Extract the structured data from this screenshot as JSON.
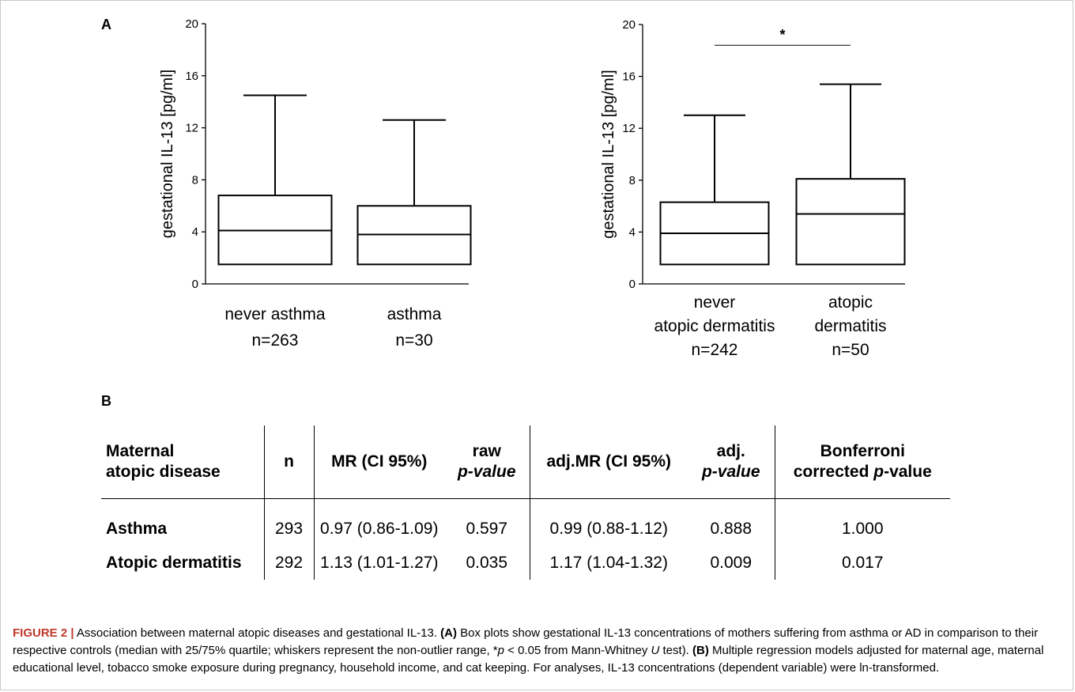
{
  "panel_a_label": "A",
  "panel_b_label": "B",
  "chart_data": [
    {
      "type": "box",
      "ylabel": "gestational IL-13 [pg/ml]",
      "ylim": [
        0,
        20
      ],
      "yticks": [
        0,
        4,
        8,
        12,
        16,
        20
      ],
      "categories": [
        {
          "lines": [
            "never asthma",
            "n=263"
          ]
        },
        {
          "lines": [
            "asthma",
            "n=30"
          ]
        }
      ],
      "boxes": [
        {
          "whisker_low": 1.5,
          "q1": 1.5,
          "median": 4.1,
          "q3": 6.8,
          "whisker_high": 14.5
        },
        {
          "whisker_low": 1.5,
          "q1": 1.5,
          "median": 3.8,
          "q3": 6.0,
          "whisker_high": 12.6
        }
      ],
      "significance": null
    },
    {
      "type": "box",
      "ylabel": "gestational IL-13 [pg/ml]",
      "ylim": [
        0,
        20
      ],
      "yticks": [
        0,
        4,
        8,
        12,
        16,
        20
      ],
      "categories": [
        {
          "lines": [
            "never",
            "atopic dermatitis",
            "n=242"
          ]
        },
        {
          "lines": [
            "atopic",
            "dermatitis",
            "n=50"
          ]
        }
      ],
      "boxes": [
        {
          "whisker_low": 1.5,
          "q1": 1.5,
          "median": 3.9,
          "q3": 6.3,
          "whisker_high": 13.0
        },
        {
          "whisker_low": 1.5,
          "q1": 1.5,
          "median": 5.4,
          "q3": 8.1,
          "whisker_high": 15.4
        }
      ],
      "significance": {
        "label": "*",
        "y": 18.4
      }
    }
  ],
  "table": {
    "headers": {
      "disease": [
        "Maternal",
        "atopic disease"
      ],
      "n": "n",
      "mr": "MR (CI 95%)",
      "raw_p_top": "raw",
      "raw_p_bottom": "p-value",
      "adj_mr": "adj.MR (CI 95%)",
      "adj_p_top": "adj.",
      "adj_p_bottom": "p-value",
      "bonf_top": "Bonferroni",
      "bonf_bottom_pre": "corrected ",
      "bonf_bottom_italic": "p",
      "bonf_bottom_post": "-value"
    },
    "rows": [
      {
        "disease": "Asthma",
        "n": "293",
        "mr": "0.97 (0.86-1.09)",
        "raw_p": "0.597",
        "adj_mr": "0.99 (0.88-1.12)",
        "adj_p": "0.888",
        "bonf": "1.000"
      },
      {
        "disease": "Atopic dermatitis",
        "n": "292",
        "mr": "1.13 (1.01-1.27)",
        "raw_p": "0.035",
        "adj_mr": "1.17 (1.04-1.32)",
        "adj_p": "0.009",
        "bonf": "0.017"
      }
    ]
  },
  "caption": {
    "label": "FIGURE 2 |",
    "t1": " Association between maternal atopic diseases and gestational IL-13. ",
    "m1": "(A)",
    "t2": " Box plots show gestational IL-13 concentrations of mothers suffering from asthma or AD in comparison to their respective controls (median with 25/75% quartile; whiskers represent the non-outlier range, *",
    "p_italic": "p",
    "t3": " < 0.05 from Mann-Whitney ",
    "u_italic": "U",
    "t4": " test). ",
    "m2": "(B)",
    "t5": " Multiple regression models adjusted for maternal age, maternal educational level, tobacco smoke exposure during pregnancy, household income, and cat keeping. For analyses, IL-13 concentrations (dependent variable) were ln-transformed."
  }
}
